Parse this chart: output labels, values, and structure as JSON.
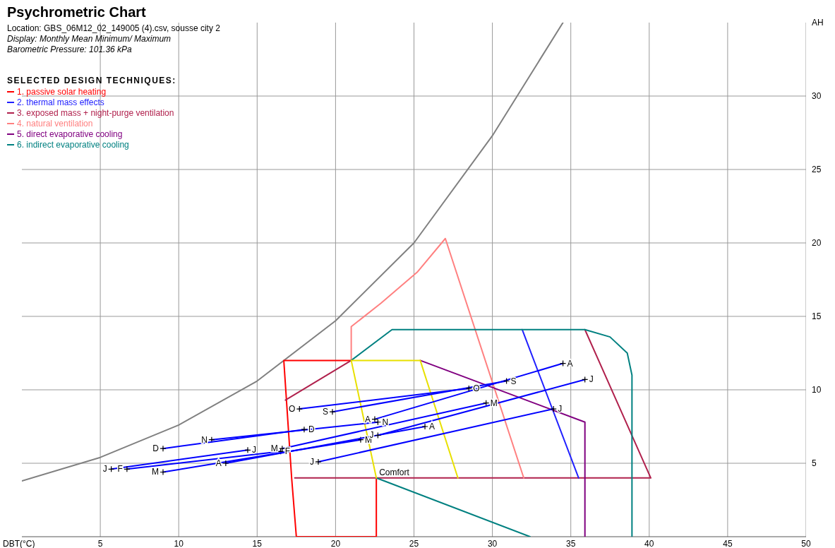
{
  "chart_data": {
    "type": "line",
    "title": "Psychrometric Chart",
    "xlabel": "DBT(°C)",
    "ylabel": "AH",
    "legend_title": "SELECTED DESIGN TECHNIQUES:",
    "legend": "top left",
    "grid": true,
    "annotations": [
      "Location: GBS_06M12_02_149005 (4).csv, sousse city 2",
      "Display: Monthly Mean Minimum/ Maximum",
      "Barometric Pressure: 101.36 kPa",
      {
        "text": "Comfort",
        "x": 22.6,
        "y": 4
      }
    ],
    "xlim": [
      0,
      50
    ],
    "xticks": [
      5,
      10,
      15,
      20,
      25,
      30,
      35,
      40,
      45,
      50
    ],
    "ylim": [
      0,
      35
    ],
    "yticks": [
      5,
      10,
      15,
      20,
      25,
      30
    ],
    "series": [
      {
        "color": "#808080",
        "x": [
          0,
          5,
          10,
          15,
          20,
          25,
          30,
          34.5
        ],
        "values": [
          3.8,
          5.4,
          7.6,
          10.6,
          14.7,
          20,
          27.3,
          35
        ]
      },
      {
        "color": "#b0204c",
        "x": [
          35.9,
          40.1,
          17.4
        ],
        "values": [
          14.1,
          4,
          4
        ]
      },
      {
        "name": "1. passive solar heating",
        "color": "#ff0000",
        "x": [
          21,
          16.7,
          17.2,
          17.5,
          22.6,
          22.6
        ],
        "values": [
          12,
          12,
          4,
          0,
          0,
          4
        ]
      },
      {
        "name": "2. thermal mass effects",
        "color": "#2020ff",
        "x": [
          31.9,
          35.5
        ],
        "values": [
          14.1,
          4
        ]
      },
      {
        "name": "3. exposed mass + night-purge ventilation",
        "color": "#b0204c",
        "x": [
          16.8,
          21
        ],
        "values": [
          9.3,
          12
        ]
      },
      {
        "name": "4. natural ventilation",
        "color": "#ff8080",
        "x": [
          21,
          21,
          22.9,
          25.2,
          27,
          32
        ],
        "values": [
          12,
          14.3,
          15.9,
          18,
          20.3,
          4
        ]
      },
      {
        "name": "5. direct evaporative cooling",
        "color": "#800080",
        "x": [
          25.4,
          35.9,
          35.9
        ],
        "values": [
          12,
          7.8,
          0
        ]
      },
      {
        "name": "6. indirect evaporative cooling",
        "color": "#008080",
        "x": [
          21,
          23.6,
          35.9,
          37.5,
          38.6,
          38.9,
          38.9
        ],
        "values": [
          12,
          14.1,
          14.1,
          13.6,
          12.5,
          11,
          0
        ]
      },
      {
        "color": "#008080",
        "x": [
          22.6,
          32.4
        ],
        "values": [
          4,
          0
        ]
      },
      {
        "color": "#e8e000",
        "x": [
          22.6,
          21,
          25.4,
          27.8
        ],
        "values": [
          4,
          12,
          12,
          4
        ]
      },
      {
        "name": "J",
        "color": "#0000ff",
        "marker": "cross",
        "x": [
          5.7,
          14.4
        ],
        "values": [
          4.6,
          5.9
        ]
      },
      {
        "name": "F",
        "color": "#0000ff",
        "marker": "cross",
        "x": [
          6.7,
          16.5
        ],
        "values": [
          4.6,
          5.8
        ]
      },
      {
        "name": "M",
        "color": "#0000ff",
        "marker": "cross",
        "x": [
          9,
          21.6
        ],
        "values": [
          4.4,
          6.6
        ]
      },
      {
        "name": "A",
        "color": "#0000ff",
        "marker": "cross",
        "x": [
          13,
          25.7
        ],
        "values": [
          5,
          7.5
        ]
      },
      {
        "name": "M",
        "color": "#0000ff",
        "marker": "cross",
        "x": [
          16.6,
          29.6
        ],
        "values": [
          6,
          9.1
        ]
      },
      {
        "name": "J",
        "color": "#0000ff",
        "marker": "cross",
        "x": [
          18.9,
          33.9
        ],
        "values": [
          5.1,
          8.7
        ]
      },
      {
        "name": "J",
        "color": "#0000ff",
        "marker": "cross",
        "x": [
          22.7,
          35.9
        ],
        "values": [
          6.9,
          10.7
        ]
      },
      {
        "name": "A",
        "color": "#0000ff",
        "marker": "cross",
        "x": [
          22.5,
          34.5
        ],
        "values": [
          8,
          11.8
        ]
      },
      {
        "name": "S",
        "color": "#0000ff",
        "marker": "cross",
        "x": [
          19.8,
          30.9
        ],
        "values": [
          8.5,
          10.6
        ]
      },
      {
        "name": "O",
        "color": "#0000ff",
        "marker": "cross",
        "x": [
          17.7,
          28.5
        ],
        "values": [
          8.7,
          10.1
        ]
      },
      {
        "name": "N",
        "color": "#0000ff",
        "marker": "cross",
        "x": [
          12.1,
          22.7
        ],
        "values": [
          6.6,
          7.8
        ]
      },
      {
        "name": "D",
        "color": "#0000ff",
        "marker": "cross",
        "x": [
          9,
          18
        ],
        "values": [
          6,
          7.3
        ]
      }
    ]
  }
}
